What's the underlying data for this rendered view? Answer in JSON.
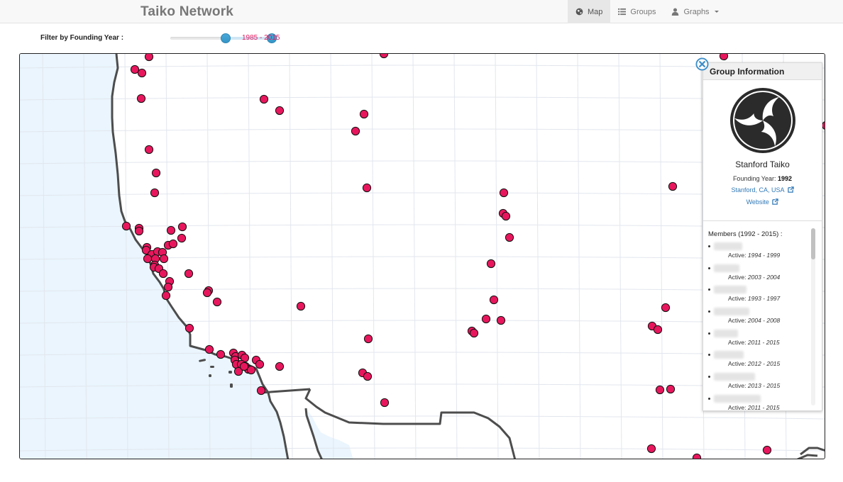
{
  "navbar": {
    "brand": "Taiko Network",
    "items": [
      {
        "label": "Map",
        "icon": "globe-icon",
        "active": true
      },
      {
        "label": "Groups",
        "icon": "list-icon",
        "active": false
      },
      {
        "label": "Graphs",
        "icon": "user-icon",
        "active": false,
        "dropdown": true
      }
    ]
  },
  "filter": {
    "label": "Filter by Founding Year :",
    "range_text": "1985 - 2015",
    "min_year": 1985,
    "max_year": 2015,
    "handle_low_fraction": 0.52,
    "handle_high_fraction": 1.0,
    "accent_color": "#e8175d"
  },
  "map": {
    "land_color": "#ffffff",
    "water_color": "#eaf5fd",
    "border_color": "#4d4d4d",
    "grid_color": "#e2e6ee",
    "marker_color": "#e8175d",
    "marker_stroke": "#111111"
  },
  "group_info": {
    "title": "Group Information",
    "name": "Stanford Taiko",
    "founding_label": "Founding Year:",
    "founding_year": "1992",
    "location_link": "Stanford, CA, USA",
    "website_link": "Website",
    "logo_icon": "mitsudomoe-logo",
    "members_title": "Members (1992 - 2015) :",
    "active_label": "Active:",
    "members": [
      {
        "active": "1994 - 1999"
      },
      {
        "active": "2003 - 2004"
      },
      {
        "active": "1993 - 1997"
      },
      {
        "active": "2004 - 2008"
      },
      {
        "active": "2011 - 2015"
      },
      {
        "active": "2012 - 2015"
      },
      {
        "active": "2013 - 2015"
      },
      {
        "active": "2011 - 2015"
      }
    ]
  }
}
